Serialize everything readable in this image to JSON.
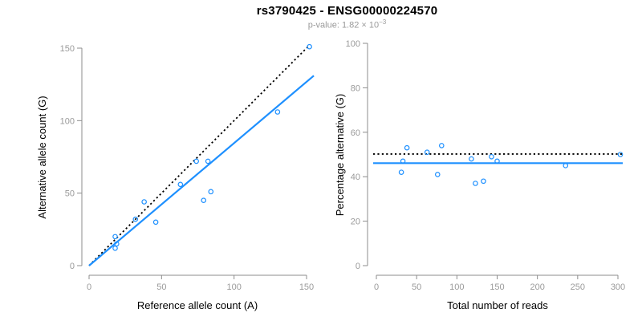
{
  "header": {
    "title": "rs3790425 - ENSG00000224570",
    "subtitle_prefix": "p-value: 1.82 × 10",
    "subtitle_exponent": "−3"
  },
  "colors": {
    "accent_blue": "#1E90FF",
    "dotted_black": "#000000",
    "axis_gray": "#8c8c8c",
    "tick_label_gray": "#9a9a9a",
    "title_black": "#000000",
    "subtitle_gray": "#9a9a9a"
  },
  "chart_data": [
    {
      "type": "scatter",
      "panel": "left",
      "xlabel": "Reference allele count (A)",
      "ylabel": "Alternative allele count (G)",
      "xlim": [
        0,
        155
      ],
      "ylim": [
        0,
        152
      ],
      "xticks": [
        0,
        50,
        100,
        150
      ],
      "yticks": [
        0,
        50,
        100,
        150
      ],
      "grid": false,
      "points": [
        [
          18,
          12
        ],
        [
          19,
          15
        ],
        [
          18,
          20
        ],
        [
          32,
          32
        ],
        [
          38,
          44
        ],
        [
          46,
          30
        ],
        [
          63,
          56
        ],
        [
          74,
          72
        ],
        [
          79,
          45
        ],
        [
          82,
          72
        ],
        [
          84,
          51
        ],
        [
          130,
          106
        ],
        [
          152,
          151
        ]
      ],
      "lines": [
        {
          "name": "identity-line",
          "style": "dotted",
          "color": "#000000",
          "from": [
            0,
            0
          ],
          "to": [
            152,
            152
          ]
        },
        {
          "name": "fit-line",
          "style": "solid",
          "color": "#1E90FF",
          "from": [
            0,
            0
          ],
          "to": [
            155,
            131
          ]
        }
      ]
    },
    {
      "type": "scatter",
      "panel": "right",
      "xlabel": "Total number of reads",
      "ylabel": "Percentage alternative (G)",
      "xlim": [
        0,
        310
      ],
      "ylim": [
        0,
        100
      ],
      "xticks": [
        0,
        50,
        100,
        150,
        200,
        250,
        300
      ],
      "yticks": [
        0,
        20,
        40,
        60,
        80,
        100
      ],
      "grid": false,
      "points": [
        [
          31,
          42
        ],
        [
          33,
          47
        ],
        [
          38,
          53
        ],
        [
          63,
          51
        ],
        [
          76,
          41
        ],
        [
          81,
          54
        ],
        [
          118,
          48
        ],
        [
          123,
          37
        ],
        [
          133,
          38
        ],
        [
          143,
          49
        ],
        [
          150,
          47
        ],
        [
          235,
          45
        ],
        [
          303,
          50
        ]
      ],
      "lines": [
        {
          "name": "null-line",
          "style": "dotted",
          "color": "#000000",
          "y": 50.2
        },
        {
          "name": "fit-line",
          "style": "solid",
          "color": "#1E90FF",
          "y": 46.1
        }
      ]
    }
  ]
}
